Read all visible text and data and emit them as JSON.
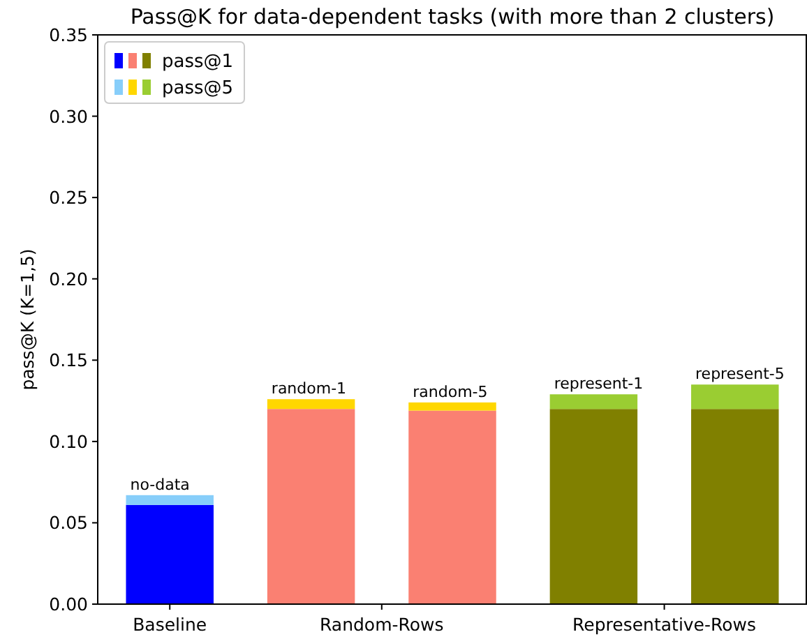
{
  "chart_data": {
    "type": "bar",
    "title": "Pass@K for data-dependent tasks (with more than 2 clusters)",
    "ylabel": "pass@K (K=1,5)",
    "stacked": true,
    "categories": [
      null,
      null,
      null,
      null,
      null
    ],
    "ylim": [
      0,
      0.35
    ],
    "yticks": [
      {
        "value": 0,
        "label": "0.00"
      },
      {
        "value": 0.05,
        "label": "0.05"
      },
      {
        "value": 0.1,
        "label": "0.10"
      },
      {
        "value": 0.15,
        "label": "0.15"
      },
      {
        "value": 0.2,
        "label": "0.20"
      },
      {
        "value": 0.25,
        "label": "0.25"
      },
      {
        "value": 0.3,
        "label": "0.30"
      },
      {
        "value": 0.35,
        "label": "0.35"
      }
    ],
    "series": [
      {
        "name": "pass@1",
        "colors": [
          "#0000ff",
          "#fa8072",
          "#fa8072",
          "#808000",
          "#808000"
        ],
        "values": [
          0.061,
          0.12,
          0.119,
          0.12,
          0.12
        ]
      },
      {
        "name": "pass@5",
        "colors": [
          "#87cefa",
          "#ffd700",
          "#ffd700",
          "#9acd32",
          "#9acd32"
        ],
        "values": [
          0.006,
          0.006,
          0.005,
          0.009,
          0.015
        ]
      }
    ],
    "annotations": [
      {
        "text": "no-data",
        "y": 0.067
      },
      {
        "text": "random-1",
        "y": 0.126
      },
      {
        "text": "random-5",
        "y": 0.124
      },
      {
        "text": "represent-1",
        "y": 0.129
      },
      {
        "text": "represent-5",
        "y": 0.135
      },
      "Baseline",
      "Random-Rows",
      "Representative-Rows"
    ],
    "legend": "top left"
  }
}
